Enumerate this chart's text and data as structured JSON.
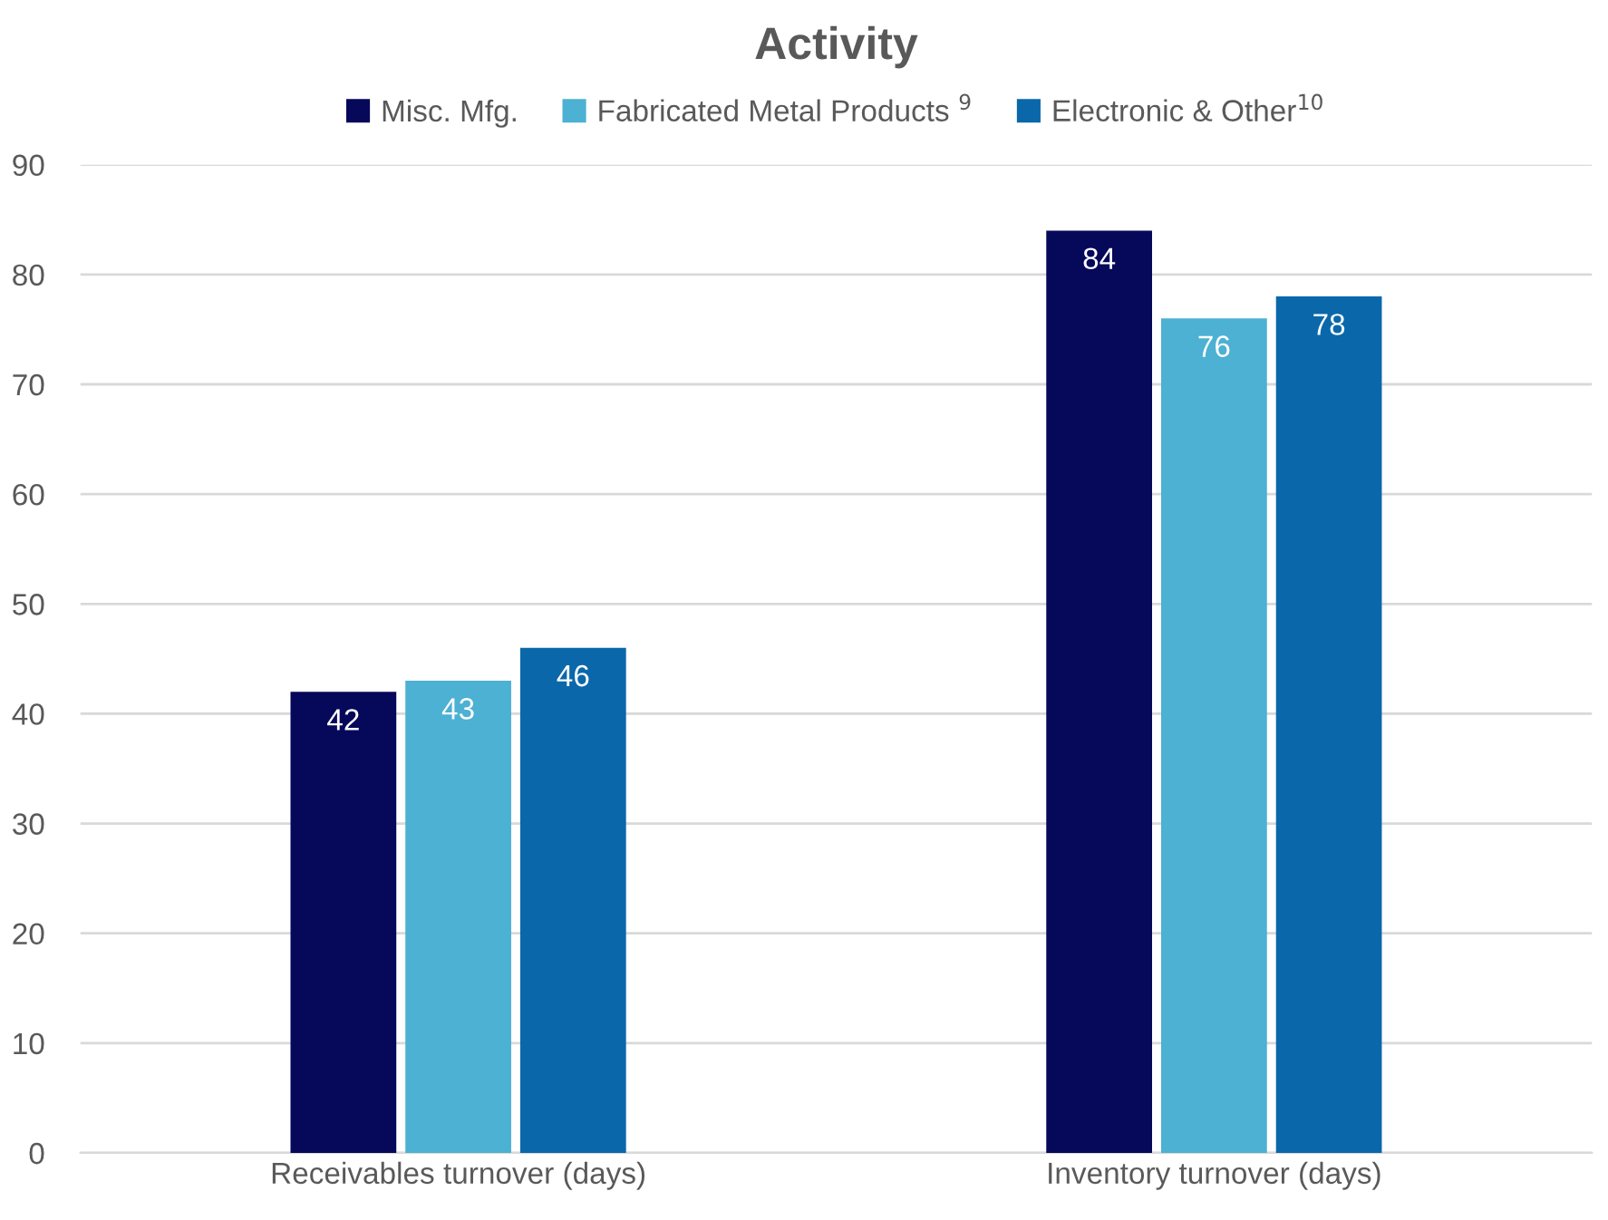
{
  "chart_data": {
    "type": "bar",
    "title": "Activity",
    "categories": [
      "Receivables turnover (days)",
      "Inventory turnover (days)"
    ],
    "series": [
      {
        "name": "Misc. Mfg.",
        "color": "#06085a",
        "values": [
          42,
          84
        ]
      },
      {
        "name": "Fabricated Metal Products $^{9}$",
        "color": "#4cb1d3",
        "values": [
          43,
          76
        ]
      },
      {
        "name": "Electronic & Other$^{10}$",
        "color": "#0a68aa",
        "values": [
          46,
          78
        ]
      }
    ],
    "ylim": [
      0,
      90
    ],
    "yticks": [
      0,
      10,
      20,
      30,
      40,
      50,
      60,
      70,
      80,
      90
    ],
    "grid": "y",
    "legend": "top",
    "data_labels": true
  }
}
